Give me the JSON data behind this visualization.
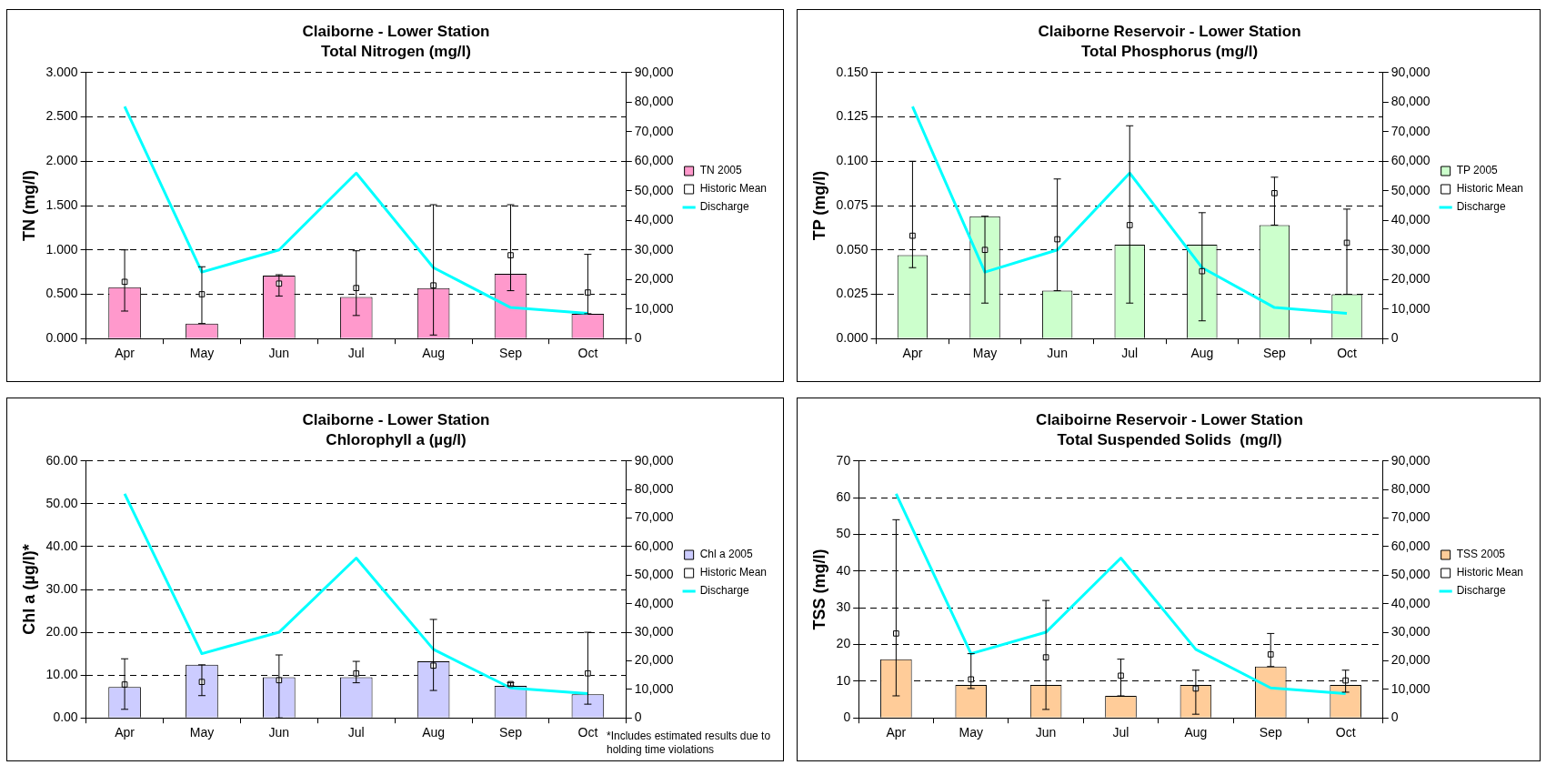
{
  "chart_data": [
    {
      "type": "bar",
      "title": "Claiborne - Lower Station",
      "subtitle": "Total Nitrogen (mg/l)",
      "ylabel": "TN (mg/l)",
      "categories": [
        "Apr",
        "May",
        "Jun",
        "Jul",
        "Aug",
        "Sep",
        "Oct"
      ],
      "series": [
        {
          "name": "TN 2005",
          "type": "bar",
          "color": "#ff99cc",
          "values": [
            0.58,
            0.17,
            0.71,
            0.47,
            0.57,
            0.73,
            0.28
          ]
        },
        {
          "name": "Historic Mean",
          "type": "scatter",
          "color": "#000000",
          "marker": "square",
          "values": [
            0.64,
            0.5,
            0.62,
            0.57,
            0.6,
            0.94,
            0.52
          ],
          "errors": [
            [
              0.31,
              1.0
            ],
            [
              0.17,
              0.81
            ],
            [
              0.48,
              0.72
            ],
            [
              0.26,
              0.99
            ],
            [
              0.04,
              1.51
            ],
            [
              0.54,
              1.51
            ],
            [
              0.28,
              0.95
            ]
          ]
        },
        {
          "name": "Discharge",
          "type": "line",
          "axis": "y2",
          "color": "#00ffff",
          "values": [
            78500,
            22500,
            30000,
            56000,
            24000,
            10500,
            8500
          ]
        }
      ],
      "ylim": [
        0,
        3
      ],
      "yticks": [
        {
          "value": 0,
          "label": "0.000"
        },
        {
          "value": 0.5,
          "label": "0.500"
        },
        {
          "value": 1,
          "label": "1.000"
        },
        {
          "value": 1.5,
          "label": "1.500"
        },
        {
          "value": 2,
          "label": "2.000"
        },
        {
          "value": 2.5,
          "label": "2.500"
        },
        {
          "value": 3,
          "label": "3.000"
        }
      ],
      "y2lim": [
        0,
        90000
      ],
      "y2ticks": [
        {
          "value": 0,
          "label": "0"
        },
        {
          "value": 10000,
          "label": "10,000"
        },
        {
          "value": 20000,
          "label": "20,000"
        },
        {
          "value": 30000,
          "label": "30,000"
        },
        {
          "value": 40000,
          "label": "40,000"
        },
        {
          "value": 50000,
          "label": "50,000"
        },
        {
          "value": 60000,
          "label": "60,000"
        },
        {
          "value": 70000,
          "label": "70,000"
        },
        {
          "value": 80000,
          "label": "80,000"
        },
        {
          "value": 90000,
          "label": "90,000"
        }
      ],
      "grid": "y",
      "legend": "right"
    },
    {
      "type": "bar",
      "title": "Claiborne Reservoir - Lower Station",
      "subtitle": "Total Phosphorus (mg/l)",
      "ylabel": "TP (mg/l)",
      "categories": [
        "Apr",
        "May",
        "Jun",
        "Jul",
        "Aug",
        "Sep",
        "Oct"
      ],
      "series": [
        {
          "name": "TP 2005",
          "type": "bar",
          "color": "#ccffcc",
          "values": [
            0.047,
            0.069,
            0.027,
            0.053,
            0.053,
            0.064,
            0.025
          ]
        },
        {
          "name": "Historic Mean",
          "type": "scatter",
          "color": "#000000",
          "marker": "square",
          "values": [
            0.058,
            0.05,
            0.056,
            0.064,
            0.038,
            0.082,
            0.054
          ],
          "errors": [
            [
              0.04,
              0.1
            ],
            [
              0.02,
              0.069
            ],
            [
              0.027,
              0.09
            ],
            [
              0.02,
              0.12
            ],
            [
              0.01,
              0.071
            ],
            [
              0.064,
              0.091
            ],
            [
              0.025,
              0.073
            ]
          ]
        },
        {
          "name": "Discharge",
          "type": "line",
          "axis": "y2",
          "color": "#00ffff",
          "values": [
            78500,
            22500,
            30000,
            56000,
            24000,
            10500,
            8500
          ]
        }
      ],
      "ylim": [
        0,
        0.15
      ],
      "yticks": [
        {
          "value": 0,
          "label": "0.000"
        },
        {
          "value": 0.025,
          "label": "0.025"
        },
        {
          "value": 0.05,
          "label": "0.050"
        },
        {
          "value": 0.075,
          "label": "0.075"
        },
        {
          "value": 0.1,
          "label": "0.100"
        },
        {
          "value": 0.125,
          "label": "0.125"
        },
        {
          "value": 0.15,
          "label": "0.150"
        }
      ],
      "y2lim": [
        0,
        90000
      ],
      "y2ticks": [
        {
          "value": 0,
          "label": "0"
        },
        {
          "value": 10000,
          "label": "10,000"
        },
        {
          "value": 20000,
          "label": "20,000"
        },
        {
          "value": 30000,
          "label": "30,000"
        },
        {
          "value": 40000,
          "label": "40,000"
        },
        {
          "value": 50000,
          "label": "50,000"
        },
        {
          "value": 60000,
          "label": "60,000"
        },
        {
          "value": 70000,
          "label": "70,000"
        },
        {
          "value": 80000,
          "label": "80,000"
        },
        {
          "value": 90000,
          "label": "90,000"
        }
      ],
      "grid": "y",
      "legend": "right"
    },
    {
      "type": "bar",
      "title": "Claiborne - Lower Station",
      "subtitle": "Chlorophyll a (µg/l)",
      "ylabel": "Chl a (µg/l)*",
      "categories": [
        "Apr",
        "May",
        "Jun",
        "Jul",
        "Aug",
        "Sep",
        "Oct"
      ],
      "series": [
        {
          "name": "Chl a 2005",
          "type": "bar",
          "color": "#ccccff",
          "values": [
            7.2,
            12.4,
            9.5,
            9.5,
            13.2,
            7.5,
            5.5
          ]
        },
        {
          "name": "Historic Mean",
          "type": "scatter",
          "color": "#000000",
          "marker": "square",
          "values": [
            7.8,
            8.4,
            8.8,
            10.4,
            12.2,
            7.9,
            10.4
          ],
          "errors": [
            [
              2.0,
              13.8
            ],
            [
              5.2,
              12.4
            ],
            [
              0.0,
              14.7
            ],
            [
              8.2,
              13.2
            ],
            [
              6.4,
              23.0
            ],
            [
              7.5,
              8.2
            ],
            [
              3.2,
              20.0
            ]
          ]
        },
        {
          "name": "Discharge",
          "type": "line",
          "axis": "y2",
          "color": "#00ffff",
          "values": [
            78500,
            22500,
            30000,
            56000,
            24000,
            10500,
            8500
          ]
        }
      ],
      "ylim": [
        0,
        60
      ],
      "yticks": [
        {
          "value": 0,
          "label": "0.00"
        },
        {
          "value": 10,
          "label": "10.00"
        },
        {
          "value": 20,
          "label": "20.00"
        },
        {
          "value": 30,
          "label": "30.00"
        },
        {
          "value": 40,
          "label": "40.00"
        },
        {
          "value": 50,
          "label": "50.00"
        },
        {
          "value": 60,
          "label": "60.00"
        }
      ],
      "y2lim": [
        0,
        90000
      ],
      "y2ticks": [
        {
          "value": 0,
          "label": "0"
        },
        {
          "value": 10000,
          "label": "10,000"
        },
        {
          "value": 20000,
          "label": "20,000"
        },
        {
          "value": 30000,
          "label": "30,000"
        },
        {
          "value": 40000,
          "label": "40,000"
        },
        {
          "value": 50000,
          "label": "50,000"
        },
        {
          "value": 60000,
          "label": "60,000"
        },
        {
          "value": 70000,
          "label": "70,000"
        },
        {
          "value": 80000,
          "label": "80,000"
        },
        {
          "value": 90000,
          "label": "90,000"
        }
      ],
      "annotations": [
        "*Includes estimated results due to holding time violations"
      ],
      "grid": "y",
      "legend": "right"
    },
    {
      "type": "bar",
      "title": "Claiboirne Reservoir - Lower Station",
      "subtitle": "Total Suspended Solids  (mg/l)",
      "ylabel": "TSS (mg/l)",
      "categories": [
        "Apr",
        "May",
        "Jun",
        "Jul",
        "Aug",
        "Sep",
        "Oct"
      ],
      "series": [
        {
          "name": "TSS 2005",
          "type": "bar",
          "color": "#ffcc99",
          "values": [
            16,
            9,
            9,
            6,
            9,
            14,
            9
          ]
        },
        {
          "name": "Historic Mean",
          "type": "scatter",
          "color": "#000000",
          "marker": "square",
          "values": [
            23,
            10.5,
            16.5,
            11.5,
            8,
            17.3,
            10.2
          ],
          "errors": [
            [
              6,
              54
            ],
            [
              8,
              17.5
            ],
            [
              2.3,
              32
            ],
            [
              6,
              16
            ],
            [
              1,
              13
            ],
            [
              14,
              23
            ],
            [
              7,
              13
            ]
          ]
        },
        {
          "name": "Discharge",
          "type": "line",
          "axis": "y2",
          "color": "#00ffff",
          "values": [
            78500,
            22500,
            30000,
            56000,
            24000,
            10500,
            8500
          ]
        }
      ],
      "ylim": [
        0,
        70
      ],
      "yticks": [
        0,
        10,
        20,
        30,
        40,
        50,
        60,
        70
      ],
      "y2lim": [
        0,
        90000
      ],
      "y2ticks": [
        {
          "value": 0,
          "label": "0"
        },
        {
          "value": 10000,
          "label": "10,000"
        },
        {
          "value": 20000,
          "label": "20,000"
        },
        {
          "value": 30000,
          "label": "30,000"
        },
        {
          "value": 40000,
          "label": "40,000"
        },
        {
          "value": 50000,
          "label": "50,000"
        },
        {
          "value": 60000,
          "label": "60,000"
        },
        {
          "value": 70000,
          "label": "70,000"
        },
        {
          "value": 80000,
          "label": "80,000"
        },
        {
          "value": 90000,
          "label": "90,000"
        }
      ],
      "grid": "y",
      "legend": "right"
    }
  ]
}
